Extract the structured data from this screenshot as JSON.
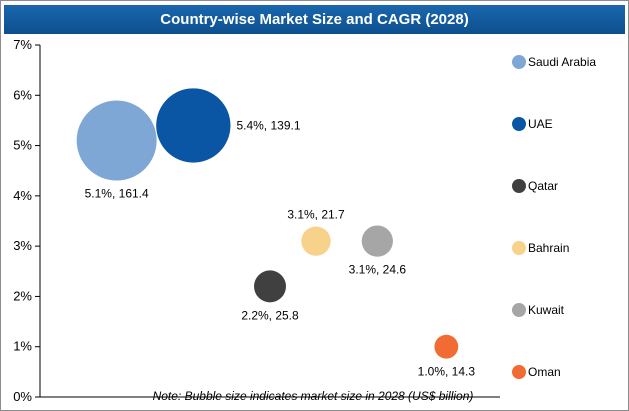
{
  "chart_data": {
    "type": "scatter",
    "title": "Country-wise Market Size and CAGR (2028)",
    "xlabel": "",
    "ylabel": "",
    "ylim": [
      0,
      7
    ],
    "yticks": [
      "0%",
      "1%",
      "2%",
      "3%",
      "4%",
      "5%",
      "6%",
      "7%"
    ],
    "grid": false,
    "legend": "right",
    "note": "Note: Bubble size indicates market size in 2028 (US$ billion)",
    "series": [
      {
        "name": "Saudi Arabia",
        "x": 1.0,
        "y": 5.1,
        "size": 161.4,
        "label": "5.1%, 161.4",
        "color": "#7fa7d6"
      },
      {
        "name": "UAE",
        "x": 2.0,
        "y": 5.4,
        "size": 139.1,
        "label": "5.4%, 139.1",
        "color": "#0a56a4"
      },
      {
        "name": "Qatar",
        "x": 3.0,
        "y": 2.2,
        "size": 25.8,
        "label": "2.2%, 25.8",
        "color": "#404040"
      },
      {
        "name": "Bahrain",
        "x": 3.6,
        "y": 3.1,
        "size": 21.7,
        "label": "3.1%, 21.7",
        "color": "#f7d28a"
      },
      {
        "name": "Kuwait",
        "x": 4.4,
        "y": 3.1,
        "size": 24.6,
        "label": "3.1%, 24.6",
        "color": "#a6a6a6"
      },
      {
        "name": "Oman",
        "x": 5.3,
        "y": 1.0,
        "size": 14.3,
        "label": "1.0%, 14.3",
        "color": "#f26b32"
      }
    ]
  }
}
